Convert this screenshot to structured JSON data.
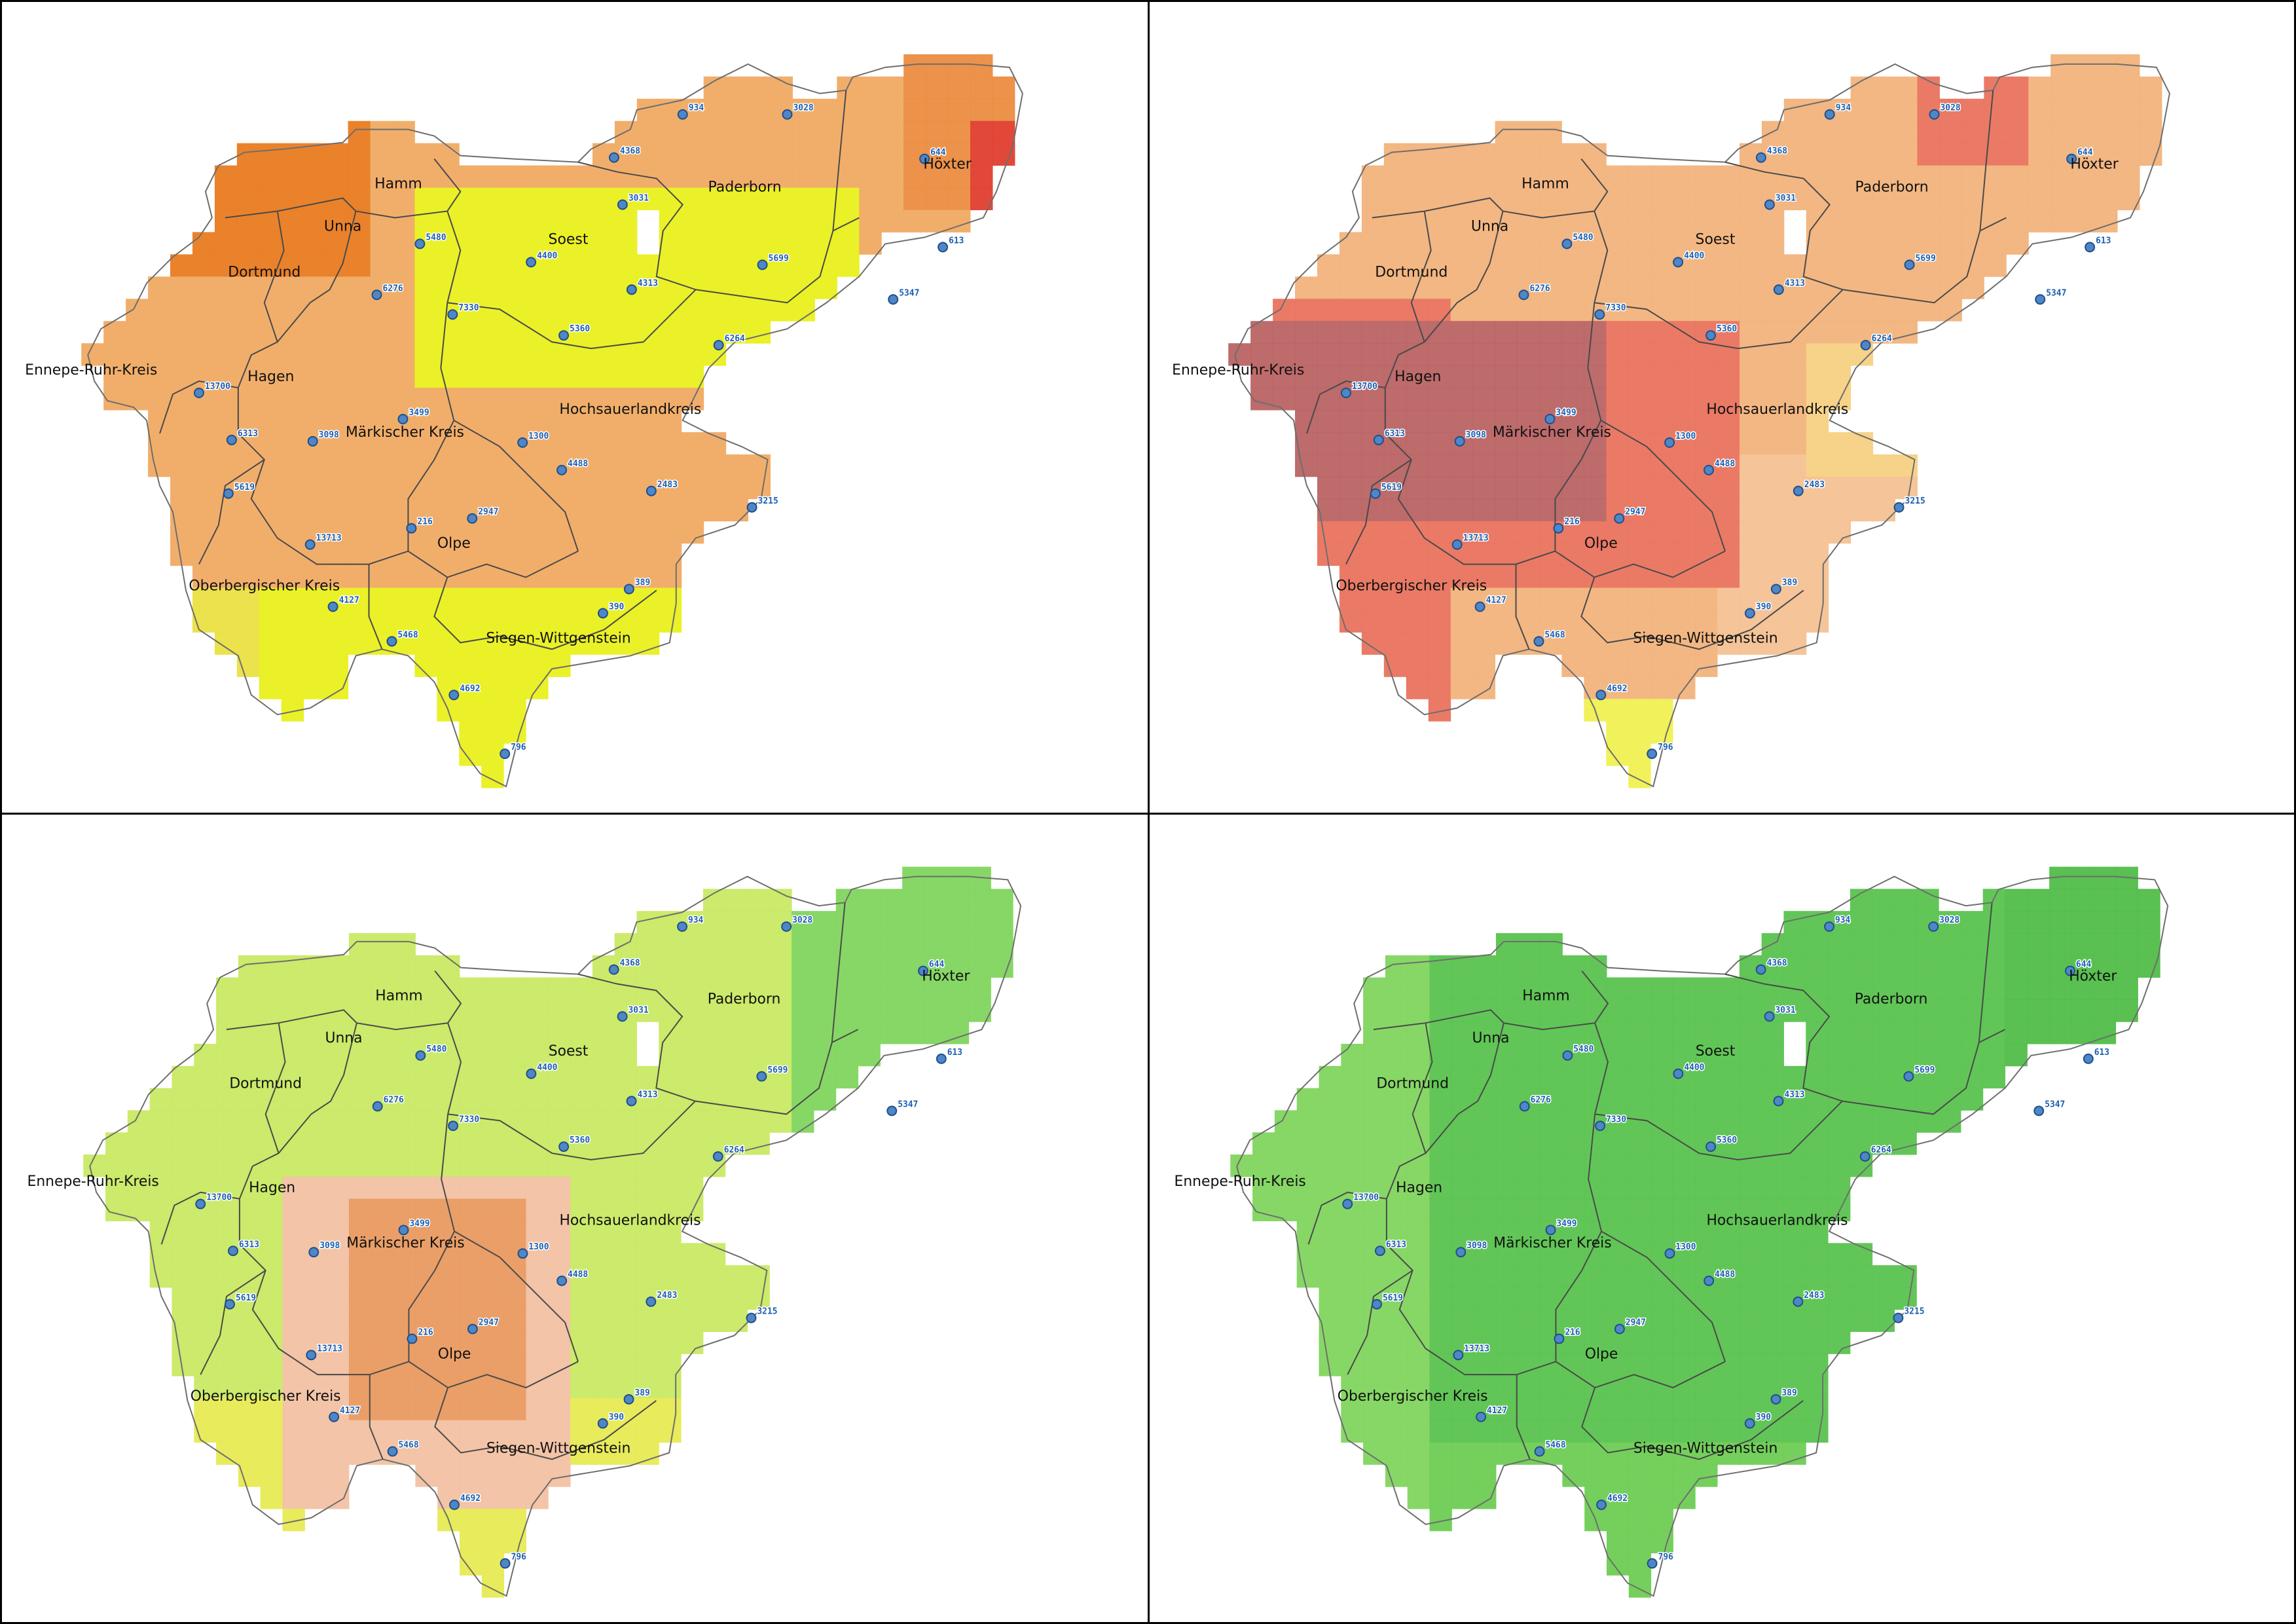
{
  "panels": [
    {
      "id": "top-left",
      "palette": "orange"
    },
    {
      "id": "top-right",
      "palette": "red"
    },
    {
      "id": "bottom-left",
      "palette": "yellowgreen"
    },
    {
      "id": "bottom-right",
      "palette": "green"
    }
  ],
  "palettes": {
    "orange": {
      "low": "#e8f018",
      "mid": "#f0a860",
      "high": "#e8781c",
      "peak": "#e03a2a"
    },
    "red": {
      "low": "#f0f050",
      "mid": "#f2b27a",
      "high": "#e8705a",
      "peak": "#b86060"
    },
    "yellowgreen": {
      "low": "#e6ea50",
      "mid": "#c8e860",
      "high": "#7ed45a",
      "peak": "#f2c0a0",
      "hot": "#e8985c"
    },
    "green": {
      "low": "#7ed45a",
      "mid": "#6acb50",
      "high": "#55c24a",
      "peak": "#4cbb44"
    }
  },
  "regions": [
    "Hamm",
    "Unna",
    "Dortmund",
    "Soest",
    "Paderborn",
    "Höxter",
    "Ennepe-Ruhr-Kreis",
    "Hagen",
    "Märkischer Kreis",
    "Hochsauerlandkreis",
    "Olpe",
    "Oberbergischer Kreis",
    "Siegen-Wittgenstein"
  ],
  "stations": [
    "934",
    "3028",
    "4368",
    "644",
    "3031",
    "5480",
    "4400",
    "5699",
    "613",
    "6276",
    "4313",
    "5347",
    "7330",
    "5360",
    "6264",
    "13700",
    "3499",
    "6313",
    "3098",
    "1300",
    "4488",
    "2483",
    "5619",
    "3215",
    "216",
    "2947",
    "13713",
    "389",
    "390",
    "4127",
    "5468",
    "4692",
    "796"
  ]
}
